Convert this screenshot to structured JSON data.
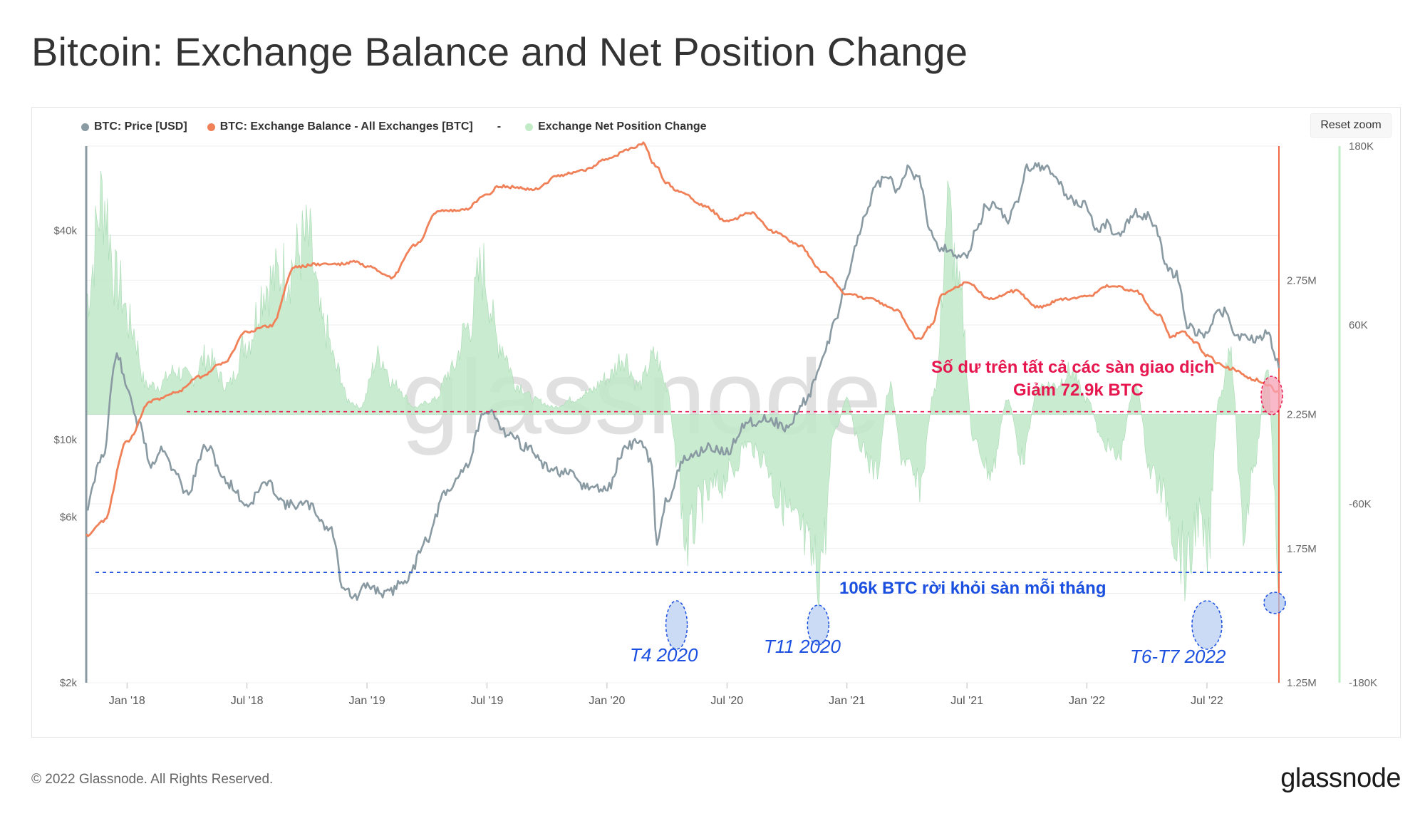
{
  "title": "Bitcoin: Exchange Balance and Net Position Change",
  "reset_zoom_label": "Reset zoom",
  "footer": {
    "copyright": "© 2022 Glassnode. All Rights Reserved.",
    "logo": "glassnode"
  },
  "watermark": "glassnode",
  "colors": {
    "price": "#8a9aa3",
    "balance": "#f08058",
    "net_change_fill": "#bfe8c8",
    "net_change_dot": "#c2ecc8",
    "annotation_red": "#e6174f",
    "annotation_blue": "#1b4fe0"
  },
  "chart_data": {
    "type": "line",
    "title": "Bitcoin: Exchange Balance and Net Position Change",
    "legend": [
      {
        "name": "BTC: Price [USD]",
        "color": "#8a9aa3"
      },
      {
        "name": "BTC: Exchange Balance - All Exchanges [BTC]",
        "color": "#f08058"
      },
      {
        "name": "-",
        "color": ""
      },
      {
        "name": "Exchange Net Position Change",
        "color": "#c2ecc8"
      }
    ],
    "x_ticks": [
      "Jan '18",
      "Jul '18",
      "Jan '19",
      "Jul '19",
      "Jan '20",
      "Jul '20",
      "Jan '21",
      "Jul '21",
      "Jan '22",
      "Jul '22"
    ],
    "x_range": [
      2017.83,
      2022.8
    ],
    "y_price": {
      "scale": "log",
      "label": "",
      "ticks": [
        "$2k",
        "$6k",
        "$10k",
        "$40k"
      ],
      "tick_values": [
        2000,
        6000,
        10000,
        40000
      ],
      "range": [
        2000,
        70000
      ]
    },
    "y_balance": {
      "label": "",
      "ticks": [
        "1.25M",
        "1.75M",
        "2.25M",
        "2.75M"
      ],
      "tick_values": [
        1250000,
        1750000,
        2250000,
        2750000
      ],
      "range": [
        1250000,
        3250000
      ]
    },
    "y_netchange": {
      "label": "",
      "ticks": [
        "-180K",
        "-60K",
        "60K",
        "180K"
      ],
      "tick_values": [
        -180000,
        -60000,
        60000,
        180000
      ],
      "range": [
        -180000,
        180000
      ]
    },
    "series": [
      {
        "name": "BTC: Price [USD]",
        "axis": "price",
        "x": [
          2017.83,
          2017.9,
          2017.96,
          2018.0,
          2018.05,
          2018.1,
          2018.15,
          2018.2,
          2018.25,
          2018.33,
          2018.42,
          2018.5,
          2018.58,
          2018.67,
          2018.75,
          2018.85,
          2018.9,
          2018.95,
          2019.0,
          2019.08,
          2019.17,
          2019.25,
          2019.33,
          2019.42,
          2019.48,
          2019.52,
          2019.58,
          2019.67,
          2019.75,
          2019.83,
          2019.92,
          2020.0,
          2020.08,
          2020.13,
          2020.18,
          2020.21,
          2020.25,
          2020.33,
          2020.42,
          2020.5,
          2020.58,
          2020.67,
          2020.75,
          2020.83,
          2020.88,
          2020.92,
          2020.96,
          2021.0,
          2021.04,
          2021.08,
          2021.13,
          2021.17,
          2021.21,
          2021.25,
          2021.3,
          2021.35,
          2021.38,
          2021.42,
          2021.46,
          2021.5,
          2021.54,
          2021.58,
          2021.62,
          2021.67,
          2021.71,
          2021.75,
          2021.79,
          2021.83,
          2021.87,
          2021.92,
          2021.96,
          2022.0,
          2022.04,
          2022.08,
          2022.13,
          2022.17,
          2022.21,
          2022.25,
          2022.29,
          2022.33,
          2022.37,
          2022.42,
          2022.46,
          2022.5,
          2022.54,
          2022.58,
          2022.62,
          2022.67,
          2022.71,
          2022.75,
          2022.8
        ],
        "values": [
          6400,
          9000,
          17500,
          14000,
          11000,
          8500,
          9500,
          8000,
          7000,
          9500,
          7500,
          6500,
          7500,
          6500,
          6500,
          5500,
          3800,
          3500,
          3800,
          3600,
          4000,
          5200,
          7000,
          8500,
          11500,
          12000,
          10500,
          9500,
          8300,
          8000,
          7300,
          7200,
          9500,
          10000,
          8800,
          5000,
          6800,
          8800,
          9500,
          9200,
          11200,
          11500,
          10800,
          13000,
          15500,
          19000,
          23000,
          29000,
          37000,
          45000,
          55000,
          57000,
          52000,
          60000,
          56000,
          40000,
          36000,
          35500,
          34000,
          33500,
          40000,
          47000,
          47500,
          43000,
          48000,
          61000,
          62000,
          60000,
          57000,
          50000,
          48000,
          47000,
          40000,
          42000,
          38500,
          42000,
          45000,
          44000,
          40000,
          31000,
          30000,
          21000,
          20500,
          20000,
          23000,
          23500,
          20000,
          19500,
          19500,
          20500,
          16500
        ]
      },
      {
        "name": "BTC: Exchange Balance - All Exchanges [BTC]",
        "axis": "balance",
        "x": [
          2017.83,
          2017.9,
          2018.0,
          2018.1,
          2018.2,
          2018.3,
          2018.4,
          2018.5,
          2018.6,
          2018.7,
          2018.8,
          2018.9,
          2018.95,
          2019.0,
          2019.1,
          2019.2,
          2019.3,
          2019.4,
          2019.5,
          2019.55,
          2019.7,
          2019.8,
          2019.9,
          2020.0,
          2020.1,
          2020.15,
          2020.2,
          2020.25,
          2020.3,
          2020.4,
          2020.5,
          2020.6,
          2020.7,
          2020.8,
          2020.9,
          2021.0,
          2021.1,
          2021.2,
          2021.3,
          2021.35,
          2021.4,
          2021.5,
          2021.6,
          2021.7,
          2021.8,
          2021.9,
          2022.0,
          2022.1,
          2022.2,
          2022.3,
          2022.35,
          2022.4,
          2022.45,
          2022.5,
          2022.55,
          2022.6,
          2022.7,
          2022.75,
          2022.8
        ],
        "values": [
          1800000,
          1850000,
          2150000,
          2300000,
          2330000,
          2390000,
          2440000,
          2560000,
          2580000,
          2800000,
          2810000,
          2810000,
          2820000,
          2800000,
          2760000,
          2880000,
          3010000,
          3010000,
          3070000,
          3100000,
          3090000,
          3140000,
          3160000,
          3200000,
          3240000,
          3260000,
          3180000,
          3110000,
          3080000,
          3030000,
          2970000,
          3000000,
          2930000,
          2880000,
          2780000,
          2700000,
          2680000,
          2640000,
          2530000,
          2580000,
          2700000,
          2740000,
          2680000,
          2710000,
          2650000,
          2680000,
          2690000,
          2730000,
          2710000,
          2620000,
          2540000,
          2560000,
          2520000,
          2470000,
          2440000,
          2420000,
          2380000,
          2360000,
          2330000
        ]
      },
      {
        "name": "Exchange Net Position Change",
        "axis": "netchange",
        "x": [
          2017.83,
          2017.9,
          2017.96,
          2018.02,
          2018.08,
          2018.13,
          2018.2,
          2018.27,
          2018.33,
          2018.42,
          2018.5,
          2018.58,
          2018.67,
          2018.75,
          2018.82,
          2018.88,
          2018.92,
          2018.97,
          2019.05,
          2019.12,
          2019.2,
          2019.28,
          2019.35,
          2019.42,
          2019.48,
          2019.55,
          2019.63,
          2019.7,
          2019.78,
          2019.85,
          2019.92,
          2020.0,
          2020.07,
          2020.13,
          2020.2,
          2020.25,
          2020.29,
          2020.33,
          2020.4,
          2020.46,
          2020.52,
          2020.58,
          2020.65,
          2020.72,
          2020.8,
          2020.85,
          2020.88,
          2020.9,
          2020.95,
          2021.0,
          2021.05,
          2021.12,
          2021.18,
          2021.23,
          2021.3,
          2021.37,
          2021.42,
          2021.47,
          2021.53,
          2021.6,
          2021.67,
          2021.73,
          2021.8,
          2021.87,
          2021.93,
          2022.0,
          2022.07,
          2022.13,
          2022.2,
          2022.27,
          2022.33,
          2022.38,
          2022.42,
          2022.46,
          2022.5,
          2022.55,
          2022.6,
          2022.65,
          2022.7,
          2022.75,
          2022.8
        ],
        "values": [
          80000,
          150000,
          90000,
          60000,
          20000,
          20000,
          30000,
          25000,
          40000,
          20000,
          50000,
          90000,
          100000,
          120000,
          60000,
          30000,
          10000,
          5000,
          40000,
          20000,
          5000,
          10000,
          30000,
          60000,
          100000,
          50000,
          20000,
          10000,
          5000,
          10000,
          15000,
          25000,
          40000,
          20000,
          40000,
          20000,
          -30000,
          -90000,
          -60000,
          -50000,
          -40000,
          -20000,
          -30000,
          -60000,
          -80000,
          -100000,
          -110000,
          -90000,
          -10000,
          10000,
          -20000,
          -40000,
          20000,
          -30000,
          -50000,
          20000,
          140000,
          80000,
          -20000,
          -40000,
          10000,
          -30000,
          20000,
          20000,
          30000,
          10000,
          -20000,
          -30000,
          20000,
          -40000,
          -60000,
          -90000,
          -110000,
          -70000,
          -100000,
          10000,
          40000,
          -80000,
          -30000,
          30000,
          -105000
        ]
      }
    ],
    "reference_lines": [
      {
        "axis": "balance",
        "value": 2260000,
        "style": "dashed",
        "color": "#e6174f"
      },
      {
        "axis": "netchange",
        "value": -106000,
        "style": "dashed",
        "color": "#1b4fe0"
      }
    ],
    "annotations": [
      {
        "text": "Số dư trên tất cả các sàn giao dịch",
        "color": "#e6174f"
      },
      {
        "text": "Giảm 72.9k BTC",
        "color": "#e6174f"
      },
      {
        "text": "106k BTC rời khỏi sàn mỗi tháng",
        "color": "#1b4fe0"
      },
      {
        "text": "T4 2020",
        "color": "#1b4fe0",
        "x": 2020.29
      },
      {
        "text": "T11 2020",
        "color": "#1b4fe0",
        "x": 2020.88
      },
      {
        "text": "T6-T7 2022",
        "color": "#1b4fe0",
        "x": 2022.5
      }
    ]
  }
}
